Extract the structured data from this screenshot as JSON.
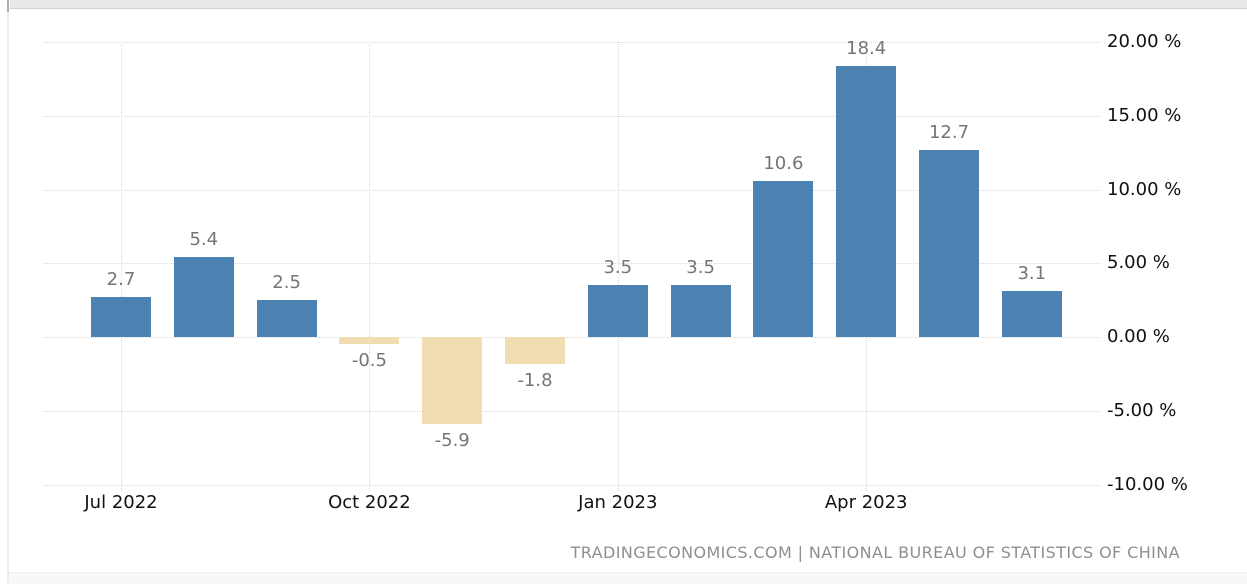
{
  "chart_data": {
    "type": "bar",
    "title": "",
    "values": [
      2.7,
      5.4,
      2.5,
      -0.5,
      -5.9,
      -1.8,
      3.5,
      3.5,
      10.6,
      18.4,
      12.7,
      3.1
    ],
    "value_labels": [
      "2.7",
      "5.4",
      "2.5",
      "-0.5",
      "-5.9",
      "-1.8",
      "3.5",
      "3.5",
      "10.6",
      "18.4",
      "12.7",
      "3.1"
    ],
    "x_tick_labels": [
      "Jul 2022",
      "Oct 2022",
      "Jan 2023",
      "Apr 2023"
    ],
    "x_tick_bar_indices": [
      0,
      3,
      6,
      9
    ],
    "y_tick_labels": [
      "20.00 %",
      "15.00 %",
      "10.00 %",
      "5.00 %",
      "0.00 %",
      "-5.00 %",
      "-10.00 %"
    ],
    "y_tick_values": [
      20,
      15,
      10,
      5,
      0,
      -5,
      -10
    ],
    "ylim": [
      -10,
      20
    ],
    "grid": "dotted",
    "legend": "none",
    "colors": {
      "positive_bar": "#4c82b2",
      "negative_bar": "#f2ddb3",
      "value_label": "#757575",
      "axis_label": "#111111",
      "gridline": "#d9d9d9"
    }
  },
  "attribution": {
    "text": "TRADINGECONOMICS.COM | NATIONAL BUREAU OF STATISTICS OF CHINA"
  }
}
